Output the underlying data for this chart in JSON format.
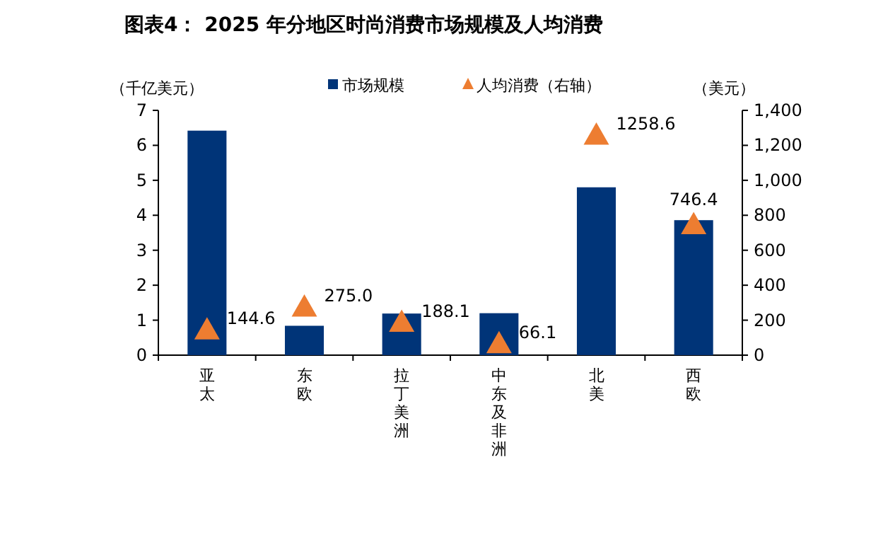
{
  "chart_data": {
    "type": "bar",
    "title": "图表4： 2025 年分地区时尚消费市场规模及人均消费",
    "ylabel": "（千亿美元）",
    "y2label": "（美元）",
    "categories": [
      "亚太",
      "东欧",
      "拉丁美洲",
      "中东及非洲",
      "北美",
      "西欧"
    ],
    "series": [
      {
        "name": "市场规模",
        "color": "#003478",
        "values": [
          6.42,
          0.84,
          1.19,
          1.2,
          4.8,
          3.86
        ]
      },
      {
        "name": "人均消费（右轴）",
        "type": "scatter",
        "axis": "y2",
        "marker": "triangle",
        "color": "#ed7d31",
        "values": [
          144.6,
          275.0,
          188.1,
          66.1,
          1258.6,
          746.4
        ],
        "value_labels": [
          "144.6",
          "275.0",
          "188.1",
          "66.1",
          "1258.6",
          "746.4"
        ]
      }
    ],
    "ylim": [
      0,
      7
    ],
    "yticks": [
      0,
      1,
      2,
      3,
      4,
      5,
      6,
      7
    ],
    "y2lim": [
      0,
      1400
    ],
    "y2ticks": [
      0,
      200,
      400,
      600,
      800,
      {
        "value": 1000,
        "label": "1,000"
      },
      {
        "value": 1200,
        "label": "1,200"
      },
      {
        "value": 1400,
        "label": "1,400"
      }
    ],
    "legend": "top",
    "grid": false
  }
}
